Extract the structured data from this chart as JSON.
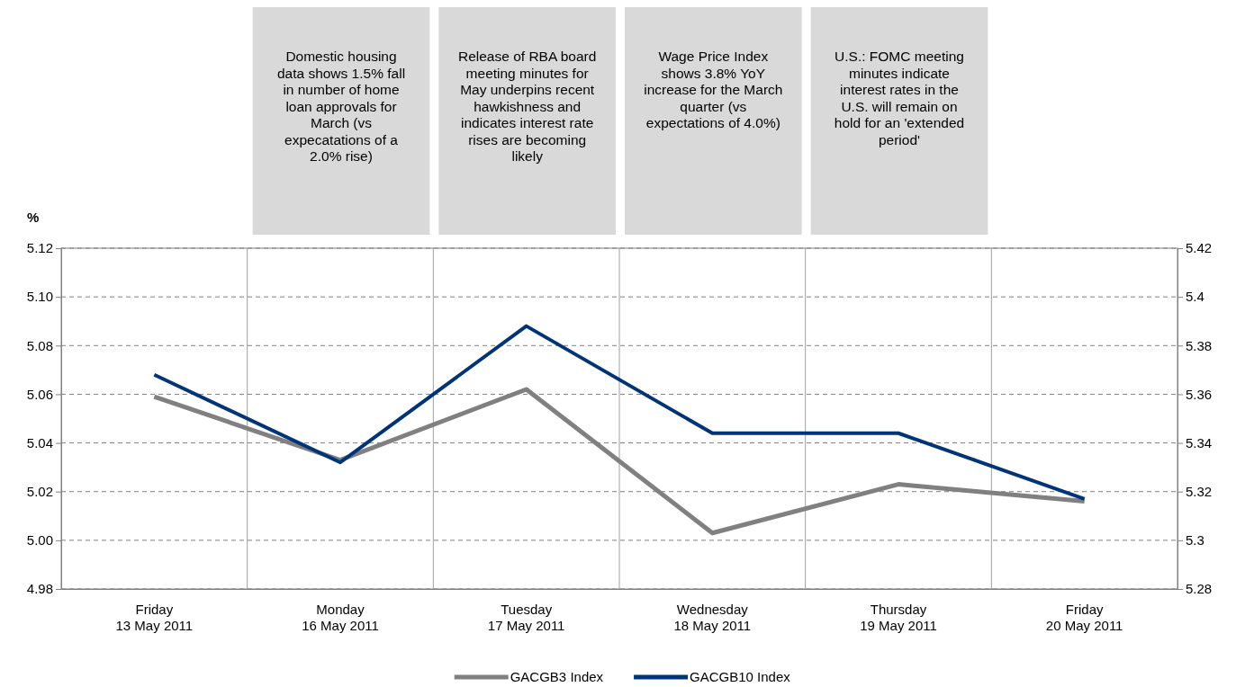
{
  "chart_data": {
    "type": "line",
    "ylabel": "%",
    "categories": [
      "Friday\n13 May 2011",
      "Monday\n16 May 2011",
      "Tuesday\n17 May 2011",
      "Wednesday\n18 May 2011",
      "Thursday\n19 May 2011",
      "Friday\n20 May 2011"
    ],
    "series": [
      {
        "name": "GACGB3 Index",
        "color": "#808080",
        "values": [
          5.059,
          5.033,
          5.062,
          5.003,
          5.023,
          5.016
        ]
      },
      {
        "name": "GACGB10 Index",
        "color": "#003478",
        "axis": "y2",
        "values": [
          5.368,
          5.332,
          5.388,
          5.344,
          5.344,
          5.317
        ]
      }
    ],
    "ylim": [
      4.98,
      5.12
    ],
    "yticks": [
      4.98,
      {
        "value": 5.0,
        "label": "5.00"
      },
      5.02,
      5.04,
      5.06,
      5.08,
      {
        "value": 5.1,
        "label": "5.10"
      },
      5.12
    ],
    "y2lim": [
      5.28,
      5.42
    ],
    "y2ticks": [
      5.28,
      5.3,
      5.32,
      5.34,
      5.36,
      5.38,
      5.4,
      5.42
    ],
    "annotations": [
      "Domestic housing data shows 1.5% fall in number of home loan approvals for March (vs expecatations of a 2.0% rise)",
      "Release of RBA board meeting minutes for May underpins recent hawkishness and indicates interest rate rises are becoming likely",
      "Wage Price Index shows 3.8% YoY increase for the March quarter (vs expectations of 4.0%)",
      "U.S.: FOMC meeting minutes indicate interest rates in the U.S. will remain on hold for an 'extended period'"
    ],
    "grid": true,
    "legend": "bottom",
    "marker": "none",
    "line_style": "solid"
  }
}
